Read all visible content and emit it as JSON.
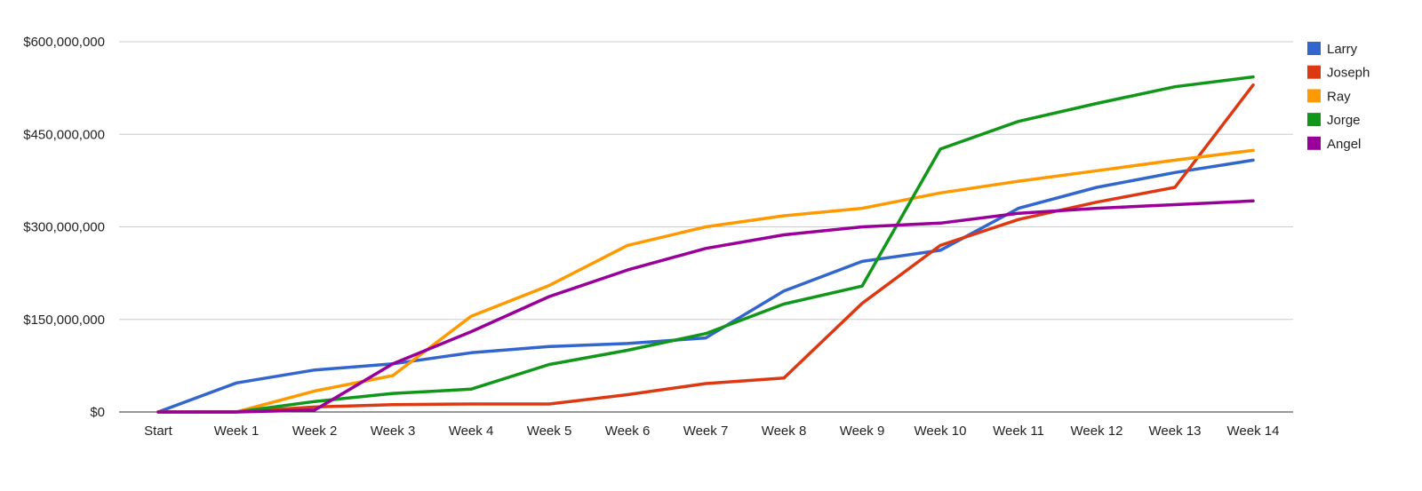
{
  "chart_data": {
    "type": "line",
    "title": "",
    "xlabel": "",
    "ylabel": "",
    "categories": [
      "Start",
      "Week 1",
      "Week 2",
      "Week 3",
      "Week 4",
      "Week 5",
      "Week 6",
      "Week 7",
      "Week 8",
      "Week 9",
      "Week 10",
      "Week 11",
      "Week 12",
      "Week 13",
      "Week 14"
    ],
    "ylim": [
      0,
      600000000
    ],
    "yticks": [
      0,
      150000000,
      300000000,
      450000000,
      600000000
    ],
    "ytick_labels": [
      "$0",
      "$150,000,000",
      "$300,000,000",
      "$450,000,000",
      "$600,000,000"
    ],
    "grid": true,
    "legend_position": "right",
    "series": [
      {
        "name": "Larry",
        "color": "#3366cc",
        "values": [
          0,
          47000000,
          68000000,
          78000000,
          96000000,
          106000000,
          111000000,
          120000000,
          196000000,
          244000000,
          262000000,
          330000000,
          364000000,
          388000000,
          408000000
        ]
      },
      {
        "name": "Joseph",
        "color": "#dc3912",
        "values": [
          0,
          0,
          8000000,
          12000000,
          13000000,
          13000000,
          28000000,
          46000000,
          55000000,
          176000000,
          270000000,
          312000000,
          340000000,
          364000000,
          530000000
        ]
      },
      {
        "name": "Ray",
        "color": "#ff9900",
        "values": [
          0,
          0,
          34000000,
          59000000,
          155000000,
          205000000,
          270000000,
          300000000,
          318000000,
          330000000,
          355000000,
          374000000,
          391000000,
          408000000,
          424000000
        ]
      },
      {
        "name": "Jorge",
        "color": "#109618",
        "values": [
          0,
          0,
          17000000,
          30000000,
          37000000,
          77000000,
          100000000,
          127000000,
          175000000,
          204000000,
          426000000,
          471000000,
          500000000,
          527000000,
          543000000
        ]
      },
      {
        "name": "Angel",
        "color": "#990099",
        "values": [
          0,
          0,
          3000000,
          78000000,
          130000000,
          187000000,
          230000000,
          265000000,
          287000000,
          300000000,
          306000000,
          322000000,
          330000000,
          336000000,
          342000000
        ]
      }
    ]
  }
}
